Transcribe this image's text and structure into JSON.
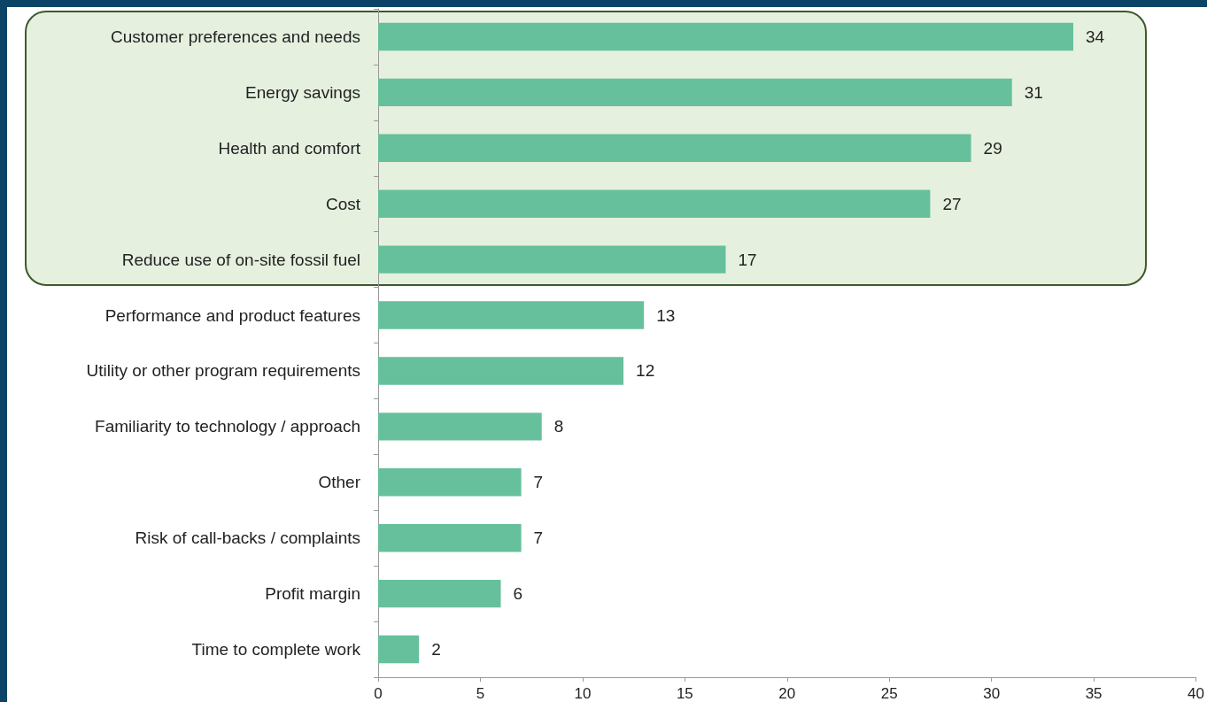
{
  "chart_data": {
    "type": "bar",
    "orientation": "horizontal",
    "categories": [
      "Customer preferences and needs",
      "Energy savings",
      "Health and comfort",
      "Cost",
      "Reduce use of on-site fossil fuel",
      "Performance and product features",
      "Utility or other program requirements",
      "Familiarity to technology / approach",
      "Other",
      "Risk of call-backs / complaints",
      "Profit margin",
      "Time to complete work"
    ],
    "values": [
      34,
      31,
      29,
      27,
      17,
      13,
      12,
      8,
      7,
      7,
      6,
      2
    ],
    "color": "#66c09c",
    "xlim": [
      0,
      40
    ],
    "xticks": [
      0,
      5,
      10,
      15,
      20,
      25,
      30,
      35,
      40
    ],
    "bands": [
      {
        "axis": "y",
        "from": "Customer preferences and needs",
        "to": "Reduce use of on-site fossil fuel",
        "color": "#e6f0df"
      }
    ],
    "data_labels": true,
    "grid": false
  }
}
